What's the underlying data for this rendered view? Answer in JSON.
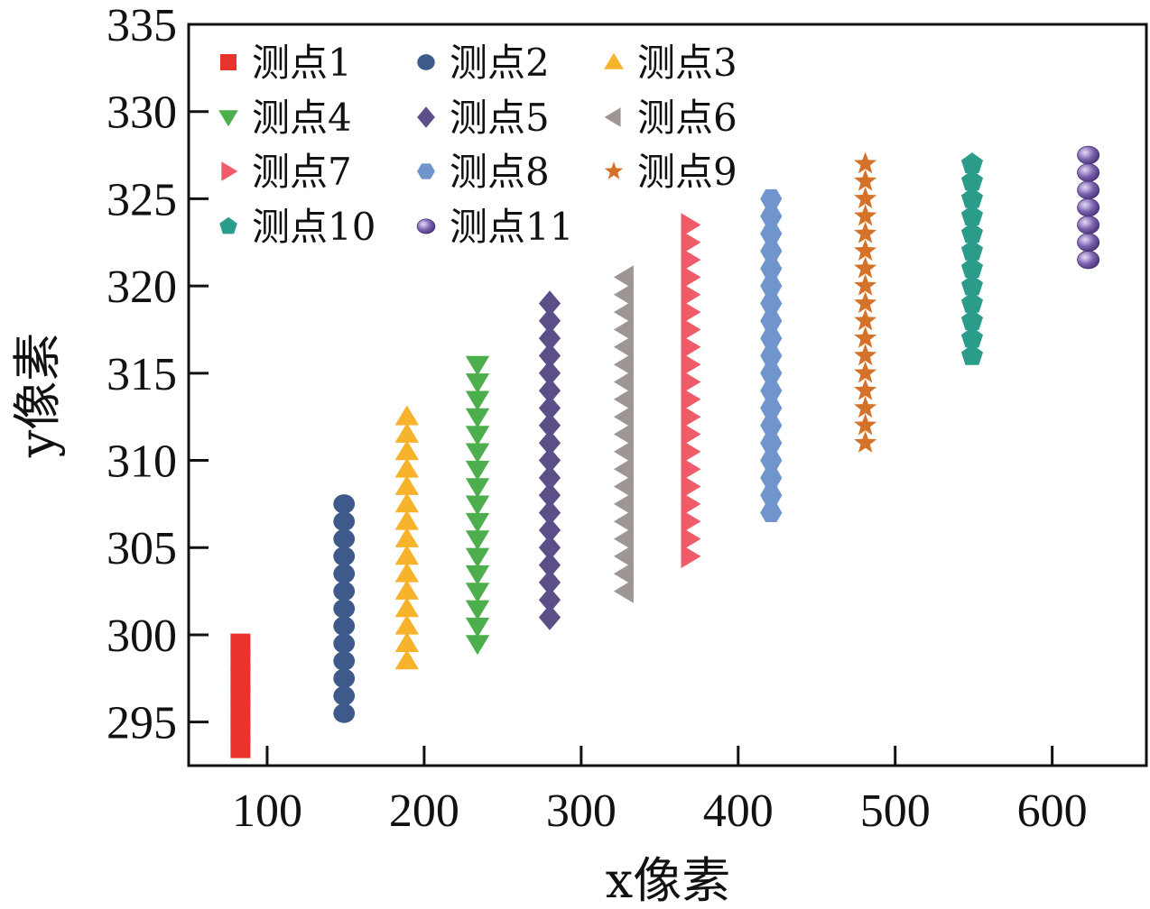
{
  "chart_data": {
    "type": "scatter",
    "xlabel": "x像素",
    "ylabel": "y像素",
    "xlim": [
      50,
      660
    ],
    "ylim": [
      292.5,
      335
    ],
    "xticks": [
      100,
      200,
      300,
      400,
      500,
      600
    ],
    "yticks": [
      295,
      300,
      305,
      310,
      315,
      320,
      325,
      330,
      335
    ],
    "legend_position": "top-left",
    "series": [
      {
        "name": "测点1",
        "marker": "square",
        "color": "#e8342c",
        "x": 83,
        "y": [
          293.5,
          294.5,
          295.5,
          296.5,
          297.5,
          298.5,
          299.5
        ]
      },
      {
        "name": "测点2",
        "marker": "circle",
        "color": "#3d5a8a",
        "x": 149,
        "y": [
          295.5,
          296.5,
          297.5,
          298.5,
          299.5,
          300.5,
          301.5,
          302.5,
          303.5,
          304.5,
          305.5,
          306.5,
          307.5
        ]
      },
      {
        "name": "测点3",
        "marker": "triangle-up",
        "color": "#f7b32b",
        "x": 189,
        "y": [
          298.5,
          299.5,
          300.5,
          301.5,
          302.5,
          303.5,
          304.5,
          305.5,
          306.5,
          307.5,
          308.5,
          309.5,
          310.5,
          311.5,
          312.5
        ]
      },
      {
        "name": "测点4",
        "marker": "triangle-down",
        "color": "#4cae4c",
        "x": 234,
        "y": [
          299.5,
          300.5,
          301.5,
          302.5,
          303.5,
          304.5,
          305.5,
          306.5,
          307.5,
          308.5,
          309.5,
          310.5,
          311.5,
          312.5,
          313.5,
          314.5,
          315.5
        ]
      },
      {
        "name": "测点5",
        "marker": "diamond",
        "color": "#5c4e86",
        "x": 280,
        "y": [
          301,
          302,
          303,
          304,
          305,
          306,
          307,
          308,
          309,
          310,
          311,
          312,
          313,
          314,
          315,
          316,
          317,
          318,
          319
        ]
      },
      {
        "name": "测点6",
        "marker": "triangle-left",
        "color": "#9e9692",
        "x": 328,
        "y": [
          302.5,
          303.5,
          304.5,
          305.5,
          306.5,
          307.5,
          308.5,
          309.5,
          310.5,
          311.5,
          312.5,
          313.5,
          314.5,
          315.5,
          316.5,
          317.5,
          318.5,
          319.5,
          320.5
        ]
      },
      {
        "name": "测点7",
        "marker": "triangle-right",
        "color": "#ef5b68",
        "x": 369,
        "y": [
          304.5,
          305.5,
          306.5,
          307.5,
          308.5,
          309.5,
          310.5,
          311.5,
          312.5,
          313.5,
          314.5,
          315.5,
          316.5,
          317.5,
          318.5,
          319.5,
          320.5,
          321.5,
          322.5,
          323.5
        ]
      },
      {
        "name": "测点8",
        "marker": "hexagon",
        "color": "#6f95cc",
        "x": 421,
        "y": [
          307,
          308,
          309,
          310,
          311,
          312,
          313,
          314,
          315,
          316,
          317,
          318,
          319,
          320,
          321,
          322,
          323,
          324,
          325
        ]
      },
      {
        "name": "测点9",
        "marker": "star",
        "color": "#d5722a",
        "x": 481,
        "y": [
          311,
          312,
          313,
          314,
          315,
          316,
          317,
          318,
          319,
          320,
          321,
          322,
          323,
          324,
          325,
          326,
          327
        ]
      },
      {
        "name": "测点10",
        "marker": "pentagon",
        "color": "#2b9b8a",
        "x": 549,
        "y": [
          316,
          317,
          318,
          319,
          320,
          321,
          322,
          323,
          324,
          325,
          326,
          327
        ]
      },
      {
        "name": "测点11",
        "marker": "sphere",
        "color": "#7d63b0",
        "x": 623,
        "y": [
          321.5,
          322.5,
          323.5,
          324.5,
          325.5,
          326.5,
          327.5
        ]
      }
    ]
  }
}
